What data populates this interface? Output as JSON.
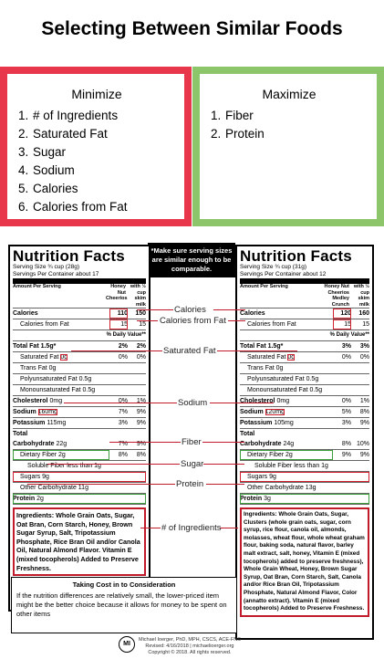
{
  "title": "Selecting Between Similar Foods",
  "minimize": {
    "heading": "Minimize",
    "items": [
      "# of Ingredients",
      "Saturated Fat",
      "Sugar",
      "Sodium",
      "Calories",
      "Calories from Fat"
    ],
    "color": "#e8364b"
  },
  "maximize": {
    "heading": "Maximize",
    "items": [
      "Fiber",
      "Protein"
    ],
    "color": "#8cc56a"
  },
  "note": "*Make sure serving sizes are similar enough to be comparable.",
  "center_labels": {
    "calories": "Calories",
    "calories_from_fat": "Calories from Fat",
    "saturated_fat": "Saturated Fat",
    "sodium": "Sodium",
    "fiber": "Fiber",
    "sugar": "Sugar",
    "protein": "Protein",
    "ingredients": "# of Ingredients"
  },
  "left_label": {
    "title": "Nutrition Facts",
    "serving_size": "Serving Size ¾ cup (28g)",
    "servings": "Servings Per Container about 17",
    "amount": "Amount Per Serving",
    "col1": "Honey Nut Cheerios",
    "col2": "with ½ cup skim milk",
    "calories": "Calories",
    "cal_v1": "110",
    "cal_v2": "150",
    "cal_fat": "Calories from Fat",
    "cal_fat_v1": "15",
    "cal_fat_v2": "15",
    "dv": "% Daily Value**",
    "total_fat": "Total Fat 1.5g*",
    "total_fat_v1": "2%",
    "total_fat_v2": "2%",
    "sat_fat_label": "Saturated Fat",
    "sat_fat_amt": "0g",
    "sat_fat_v1": "0%",
    "sat_fat_v2": "0%",
    "trans_fat": "Trans Fat 0g",
    "poly_fat": "Polyunsaturated Fat 0.5g",
    "mono_fat": "Monounsaturated Fat 0.5g",
    "chol": "Cholesterol",
    "chol_amt": "0mg",
    "chol_v1": "0%",
    "chol_v2": "1%",
    "sodium_label": "Sodium",
    "sodium_amt": "160mg",
    "sodium_v1": "7%",
    "sodium_v2": "9%",
    "potassium": "Potassium",
    "potassium_amt": "115mg",
    "potassium_v1": "3%",
    "potassium_v2": "9%",
    "total": "Total",
    "carb": "Carbohydrate",
    "carb_amt": "22g",
    "carb_v1": "7%",
    "carb_v2": "9%",
    "fiber": "Dietary Fiber 2g",
    "fiber_v1": "8%",
    "fiber_v2": "8%",
    "soluble": "Soluble Fiber less than 1g",
    "sugars": "Sugars 9g",
    "other_carb": "Other Carbohydrate 11g",
    "protein_label": "Protein",
    "protein_amt": "2g",
    "ingredients": "Ingredients: Whole Grain Oats, Sugar, Oat Bran, Corn Starch, Honey, Brown Sugar Syrup, Salt, Tripotassium Phosphate, Rice Bran Oil and/or Canola Oil, Natural Almond Flavor. Vitamin E (mixed tocopherols) Added to Preserve Freshness."
  },
  "right_label": {
    "title": "Nutrition Facts",
    "serving_size": "Serving Size ¾ cup (31g)",
    "servings": "Servings Per Container about 12",
    "amount": "Amount Per Serving",
    "col1": "Honey Nut Cheerios Medley Crunch",
    "col2": "with ½ cup skim milk",
    "calories": "Calories",
    "cal_v1": "120",
    "cal_v2": "160",
    "cal_fat": "Calories from Fat",
    "cal_fat_v1": "15",
    "cal_fat_v2": "15",
    "dv": "% Daily Value**",
    "total_fat": "Total Fat 1.5g*",
    "total_fat_v1": "3%",
    "total_fat_v2": "3%",
    "sat_fat_label": "Saturated Fat",
    "sat_fat_amt": "0g",
    "sat_fat_v1": "0%",
    "sat_fat_v2": "0%",
    "trans_fat": "Trans Fat 0g",
    "poly_fat": "Polyunsaturated Fat 0.5g",
    "mono_fat": "Monounsaturated Fat 0.5g",
    "chol": "Cholesterol",
    "chol_amt": "0mg",
    "chol_v1": "0%",
    "chol_v2": "1%",
    "sodium_label": "Sodium",
    "sodium_amt": "120mg",
    "sodium_v1": "5%",
    "sodium_v2": "8%",
    "potassium": "Potassium",
    "potassium_amt": "105mg",
    "potassium_v1": "3%",
    "potassium_v2": "9%",
    "total": "Total",
    "carb": "Carbohydrate",
    "carb_amt": "24g",
    "carb_v1": "8%",
    "carb_v2": "10%",
    "fiber": "Dietary Fiber 2g",
    "fiber_v1": "9%",
    "fiber_v2": "9%",
    "soluble": "Soluble Fiber less than 1g",
    "sugars": "Sugars 9g",
    "other_carb": "Other Carbohydrate 13g",
    "protein_label": "Protein",
    "protein_amt": "3g",
    "ingredients": "Ingredients: Whole Grain Oats, Sugar, Clusters (whole grain oats, sugar, corn syrup, rice flour, canola oil, almonds, molasses, wheat flour, whole wheat graham flour, baking soda, natural flavor, barley malt extract, salt, honey, Vitamin E (mixed tocopherols) added to preserve freshness), Whole Grain Wheat, Honey, Brown Sugar Syrup, Oat Bran, Corn Starch, Salt, Canola and/or Rice Bran Oil, Tripotassium Phosphate, Natural Almond Flavor, Color (annatto extract). Vitamin E (mixed tocopherols) Added to Preserve Freshness."
  },
  "cost": {
    "title": "Taking Cost in to Consideration",
    "text": "If the nutrition differences are relatively small, the lower-priced item might be the better choice because it allows for money to be spent on other items"
  },
  "footer": {
    "logo": "MI",
    "name": "Michael Ioerger, PhD, MPH, CSCS, ACE-FNS",
    "revised": "Revised: 4/16/2018 | michaelioerger.org",
    "copyright": "Copyright © 2018. All rights reserved."
  }
}
